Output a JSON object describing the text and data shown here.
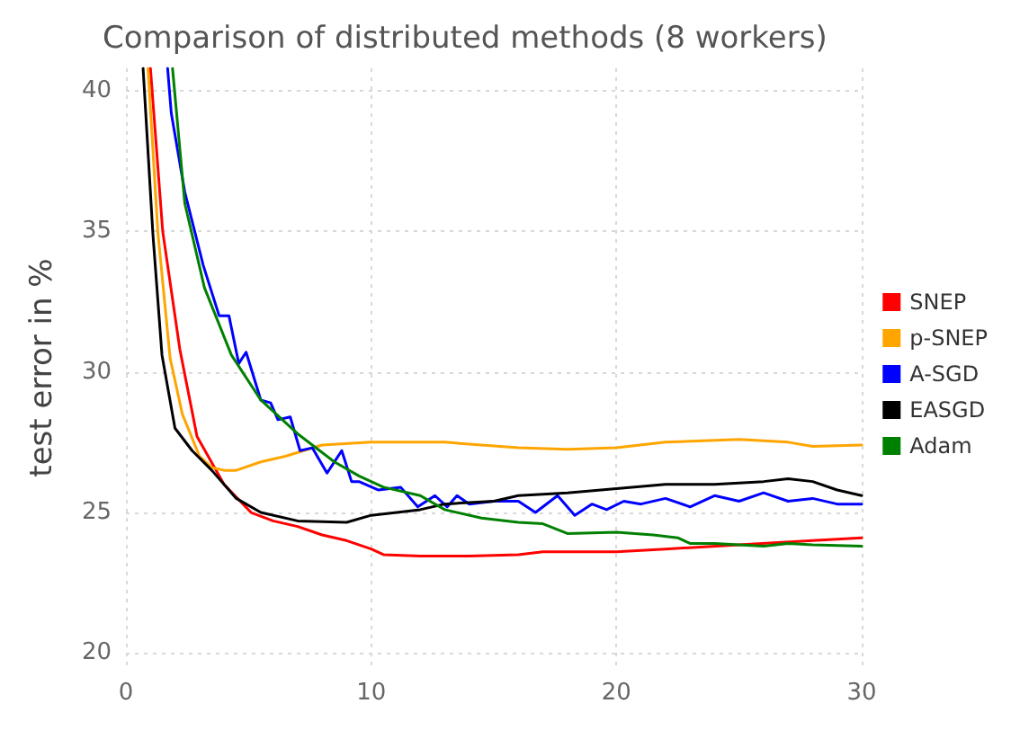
{
  "chart_data": {
    "type": "line",
    "title": "Comparison of distributed methods (8 workers)",
    "ylabel": "test error in %",
    "xlim": [
      0,
      30
    ],
    "xticks": [
      0,
      10,
      20,
      30
    ],
    "ylim": [
      19.5,
      40.8
    ],
    "yticks": [
      20,
      25,
      30,
      35,
      40
    ],
    "grid": true,
    "legend": "right",
    "marker": "none",
    "line_style": "solid",
    "series": [
      {
        "name": "SNEP",
        "color": "#ff0000",
        "x": [
          1.0,
          1.5,
          2.2,
          2.9,
          4,
          5.1,
          6,
          7,
          8,
          9,
          10,
          10.5,
          12,
          14,
          16,
          17,
          20,
          22,
          25,
          28,
          30
        ],
        "values": [
          40.8,
          35,
          30.8,
          27.7,
          26,
          25,
          24.7,
          24.5,
          24.2,
          24,
          23.7,
          23.5,
          23.45,
          23.45,
          23.5,
          23.6,
          23.6,
          23.7,
          23.85,
          24,
          24.1
        ]
      },
      {
        "name": "p-SNEP",
        "color": "#ffa500",
        "x": [
          0.9,
          1.3,
          1.8,
          2.3,
          3,
          3.5,
          4,
          4.5,
          5.5,
          6.5,
          8,
          10,
          13,
          16,
          18,
          20,
          22,
          25,
          27,
          28,
          30
        ],
        "values": [
          40.8,
          35,
          30.5,
          28.5,
          27,
          26.6,
          26.5,
          26.5,
          26.8,
          27,
          27.4,
          27.5,
          27.5,
          27.3,
          27.25,
          27.3,
          27.5,
          27.6,
          27.5,
          27.35,
          27.4
        ]
      },
      {
        "name": "A-SGD",
        "color": "#0000ff",
        "x": [
          1.7,
          1.85,
          2.4,
          3.15,
          3.8,
          4.2,
          4.6,
          4.9,
          5.5,
          5.9,
          6.2,
          6.7,
          7.1,
          7.6,
          8.2,
          8.8,
          9.2,
          9.5,
          10.3,
          11.2,
          11.9,
          12.6,
          13.1,
          13.5,
          14,
          15,
          16,
          16.7,
          17.6,
          18.3,
          19,
          19.6,
          20.3,
          21,
          22,
          23,
          24,
          25,
          26,
          27,
          28,
          29,
          30
        ],
        "values": [
          40.8,
          39.2,
          36.4,
          33.8,
          32,
          32,
          30.3,
          30.7,
          29,
          28.9,
          28.3,
          28.4,
          27.2,
          27.3,
          26.4,
          27.2,
          26.1,
          26.1,
          25.8,
          25.9,
          25.2,
          25.6,
          25.2,
          25.6,
          25.3,
          25.4,
          25.4,
          25,
          25.6,
          24.9,
          25.3,
          25.1,
          25.4,
          25.3,
          25.5,
          25.2,
          25.6,
          25.4,
          25.7,
          25.4,
          25.5,
          25.3,
          25.3
        ]
      },
      {
        "name": "EASGD",
        "color": "#000000",
        "x": [
          0.7,
          1.1,
          1.47,
          2,
          2.7,
          3.5,
          4.5,
          5.5,
          7,
          9,
          10,
          12,
          13,
          15,
          16,
          18,
          20,
          22,
          24,
          26,
          27,
          28,
          29,
          30
        ],
        "values": [
          40.8,
          34.9,
          30.6,
          28,
          27.2,
          26.5,
          25.5,
          25,
          24.7,
          24.65,
          24.9,
          25.1,
          25.3,
          25.4,
          25.6,
          25.7,
          25.85,
          26,
          26,
          26.1,
          26.2,
          26.1,
          25.8,
          25.6
        ]
      },
      {
        "name": "Adam",
        "color": "#008000",
        "x": [
          1.9,
          2.4,
          3.2,
          4.3,
          5.5,
          7,
          8.5,
          9.5,
          10.5,
          12,
          13,
          14.5,
          16,
          17,
          18,
          20,
          21.5,
          22.5,
          23,
          24,
          25,
          26,
          27,
          28,
          30
        ],
        "values": [
          40.8,
          36,
          33,
          30.6,
          29,
          27.8,
          26.8,
          26.3,
          25.9,
          25.6,
          25.1,
          24.8,
          24.65,
          24.6,
          24.25,
          24.3,
          24.2,
          24.1,
          23.9,
          23.9,
          23.85,
          23.8,
          23.9,
          23.85,
          23.8
        ]
      }
    ]
  }
}
